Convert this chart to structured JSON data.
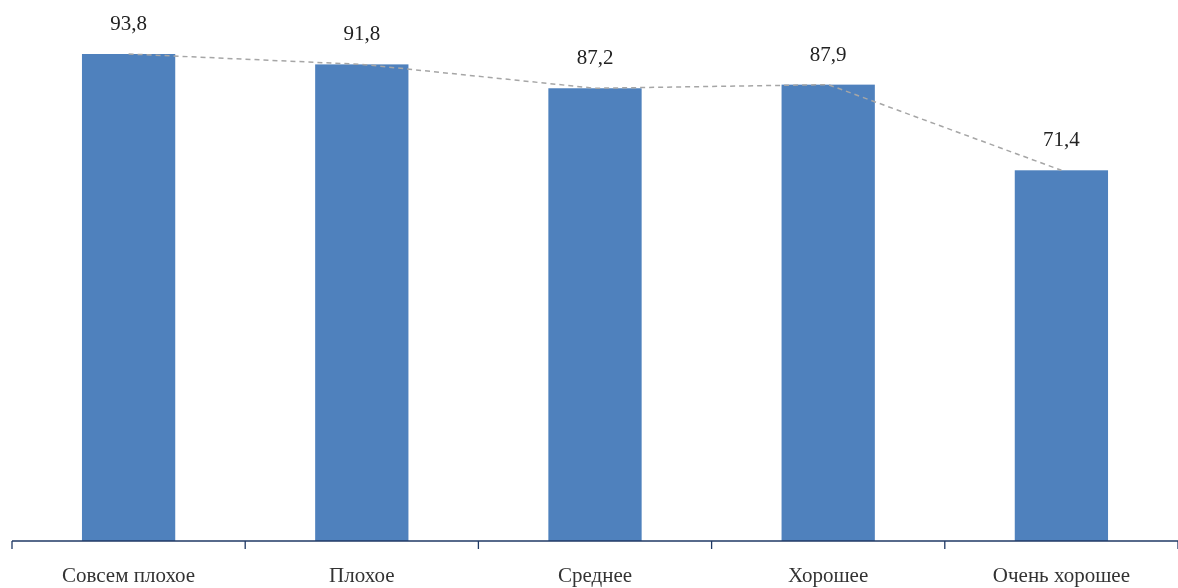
{
  "chart_data": {
    "type": "bar",
    "categories": [
      "Совсем плохое",
      "Плохое",
      "Среднее",
      "Хорошее",
      "Очень хорошее"
    ],
    "tick_labels": "x",
    "series": [
      {
        "color": "#4f81bd",
        "values": [
          93.8,
          91.8,
          87.2,
          87.9,
          71.4
        ],
        "value_labels": [
          "93,8",
          "91,8",
          "87,2",
          "87,9",
          "71,4"
        ]
      },
      {
        "type": "line",
        "color": "#a6a6a6",
        "values": [
          93.8,
          91.8,
          87.2,
          87.9,
          71.4
        ],
        "line_style": "dashed",
        "marker": "none"
      }
    ]
  }
}
